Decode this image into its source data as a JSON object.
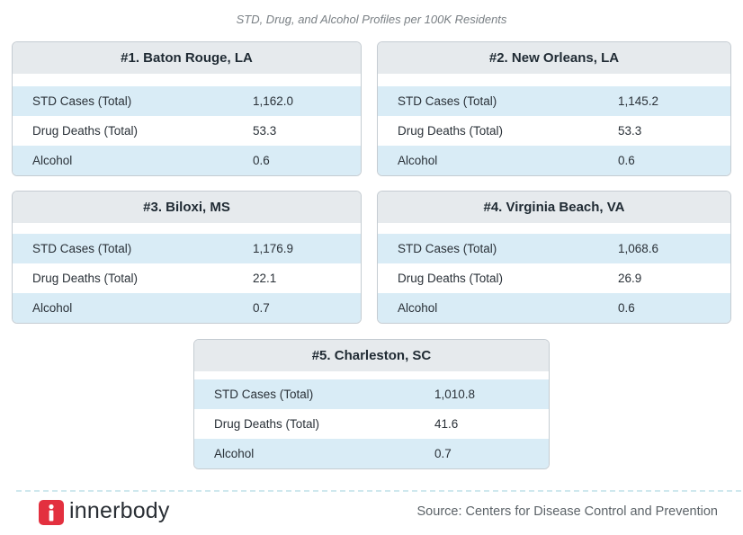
{
  "title": "STD, Drug, and Alcohol Profiles per 100K Residents",
  "cards": [
    {
      "title": "#1. Baton Rouge, LA",
      "rows": [
        [
          "STD Cases (Total)",
          "1,162.0"
        ],
        [
          "Drug Deaths (Total)",
          "53.3"
        ],
        [
          "Alcohol",
          "0.6"
        ]
      ]
    },
    {
      "title": "#2. New Orleans, LA",
      "rows": [
        [
          "STD Cases (Total)",
          "1,145.2"
        ],
        [
          "Drug Deaths (Total)",
          "53.3"
        ],
        [
          "Alcohol",
          "0.6"
        ]
      ]
    },
    {
      "title": "#3. Biloxi, MS",
      "rows": [
        [
          "STD Cases (Total)",
          "1,176.9"
        ],
        [
          "Drug Deaths (Total)",
          "22.1"
        ],
        [
          "Alcohol",
          "0.7"
        ]
      ]
    },
    {
      "title": "#4. Virginia Beach, VA",
      "rows": [
        [
          "STD Cases (Total)",
          "1,068.6"
        ],
        [
          "Drug Deaths (Total)",
          "26.9"
        ],
        [
          "Alcohol",
          "0.6"
        ]
      ]
    },
    {
      "title": "#5. Charleston, SC",
      "rows": [
        [
          "STD Cases (Total)",
          "1,010.8"
        ],
        [
          "Drug Deaths (Total)",
          "41.6"
        ],
        [
          "Alcohol",
          "0.7"
        ]
      ]
    }
  ],
  "footer": {
    "brand": "innerbody",
    "source": "Source: Centers for Disease Control and Prevention"
  }
}
